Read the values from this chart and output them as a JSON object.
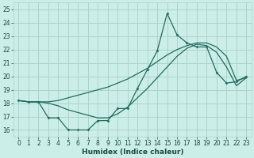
{
  "xlabel": "Humidex (Indice chaleur)",
  "bg_color": "#cceee8",
  "grid_color": "#aad4cc",
  "line_color": "#236b5e",
  "xlim": [
    -0.5,
    23.5
  ],
  "ylim": [
    15.5,
    25.5
  ],
  "xticks": [
    0,
    1,
    2,
    3,
    4,
    5,
    6,
    7,
    8,
    9,
    10,
    11,
    12,
    13,
    14,
    15,
    16,
    17,
    18,
    19,
    20,
    21,
    22,
    23
  ],
  "yticks": [
    16,
    17,
    18,
    19,
    20,
    21,
    22,
    23,
    24,
    25
  ],
  "line1_x": [
    0,
    1,
    2,
    3,
    4,
    5,
    6,
    7,
    8,
    9,
    10,
    11,
    12,
    13,
    14,
    15,
    16,
    17,
    18,
    19,
    20,
    21,
    22,
    23
  ],
  "line1_y": [
    18.2,
    18.1,
    18.1,
    18.1,
    18.2,
    18.4,
    18.6,
    18.8,
    19.0,
    19.2,
    19.5,
    19.8,
    20.2,
    20.6,
    21.1,
    21.6,
    22.0,
    22.3,
    22.5,
    22.5,
    22.2,
    21.5,
    19.7,
    19.9
  ],
  "line2_x": [
    0,
    1,
    2,
    3,
    4,
    5,
    6,
    7,
    8,
    9,
    10,
    11,
    12,
    13,
    14,
    15,
    16,
    17,
    18,
    19,
    20,
    21,
    22,
    23
  ],
  "line2_y": [
    18.2,
    18.1,
    18.1,
    18.0,
    17.8,
    17.5,
    17.3,
    17.1,
    16.9,
    16.9,
    17.2,
    17.7,
    18.4,
    19.1,
    19.9,
    20.7,
    21.5,
    22.1,
    22.4,
    22.3,
    21.8,
    20.7,
    19.3,
    19.9
  ],
  "line3_x": [
    0,
    1,
    2,
    3,
    4,
    5,
    6,
    7,
    8,
    9,
    10,
    11,
    12,
    13,
    14,
    15,
    16,
    17,
    18,
    19,
    20,
    21,
    22,
    23
  ],
  "line3_y": [
    18.2,
    18.1,
    18.1,
    16.9,
    16.9,
    16.0,
    16.0,
    16.0,
    16.7,
    16.7,
    17.6,
    17.6,
    19.1,
    20.5,
    21.9,
    24.7,
    23.1,
    22.5,
    22.2,
    22.2,
    20.3,
    19.5,
    19.6,
    20.0
  ],
  "xlabel_fontsize": 6.5,
  "tick_fontsize": 5.5
}
